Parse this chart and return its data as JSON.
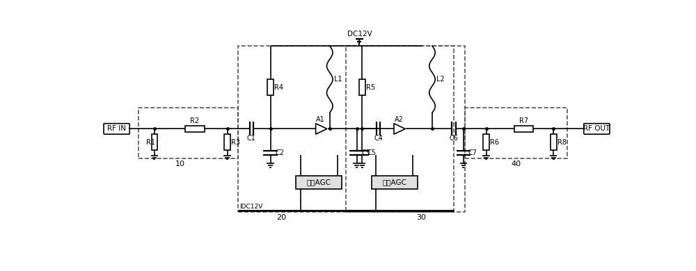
{
  "bg_color": "#ffffff",
  "line_color": "#000000",
  "dashed_color": "#555555",
  "agc_fill": "#e0e0e0",
  "rfin_label": "RF IN",
  "rfout_label": "RF OUT",
  "dc12v_label": "DC12V",
  "idc12v_label": "IDC12V",
  "analog_agc_label": "模拟AGC",
  "digital_agc_label": "数字AGC",
  "label_10": "10",
  "label_20": "20",
  "label_30": "30",
  "label_40": "40"
}
